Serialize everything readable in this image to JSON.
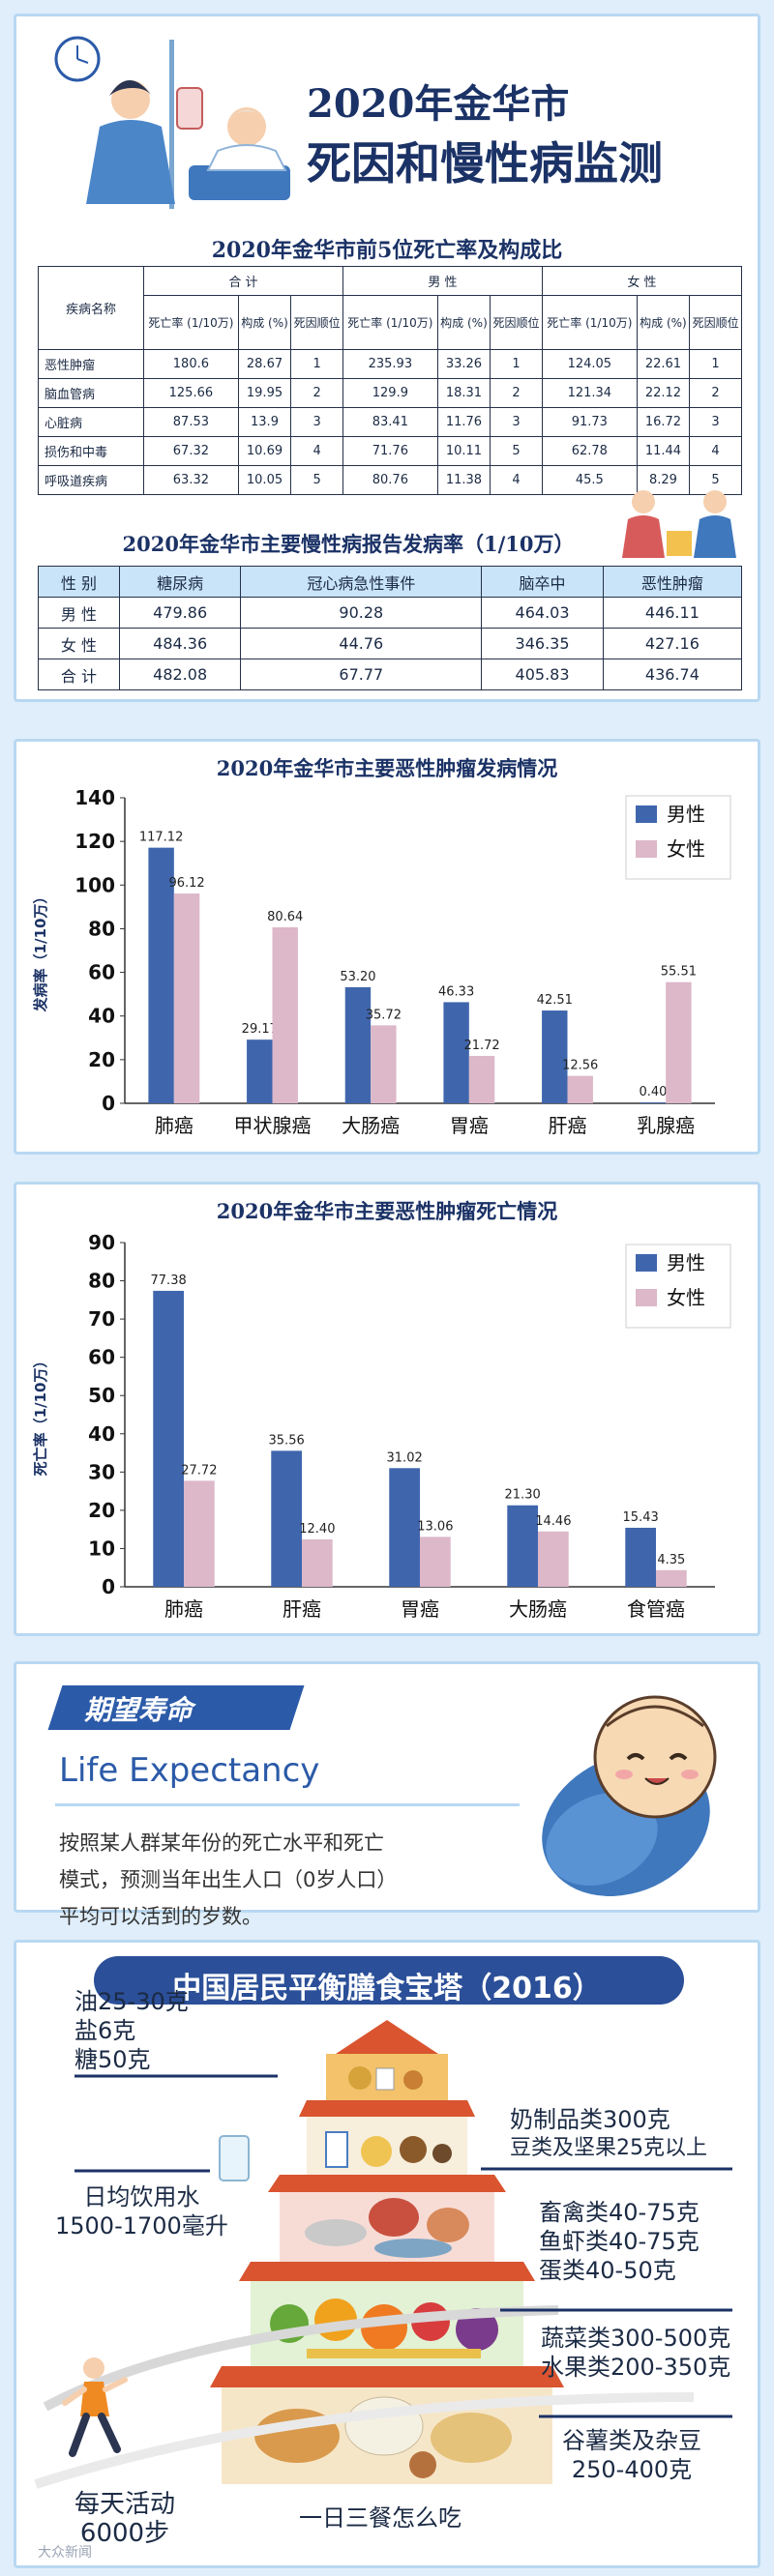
{
  "header": {
    "line1": "2020年金华市",
    "line2": "死因和慢性病监测"
  },
  "table1": {
    "title": "2020年金华市前5位死亡率及构成比",
    "col_disease": "疾病名称",
    "groups": [
      "合 计",
      "男 性",
      "女 性"
    ],
    "sub": [
      "死亡率 (1/10万)",
      "构成 (%)",
      "死因顺位"
    ],
    "rows": [
      {
        "name": "恶性肿瘤",
        "v": [
          "180.6",
          "28.67",
          "1",
          "235.93",
          "33.26",
          "1",
          "124.05",
          "22.61",
          "1"
        ]
      },
      {
        "name": "脑血管病",
        "v": [
          "125.66",
          "19.95",
          "2",
          "129.9",
          "18.31",
          "2",
          "121.34",
          "22.12",
          "2"
        ]
      },
      {
        "name": "心脏病",
        "v": [
          "87.53",
          "13.9",
          "3",
          "83.41",
          "11.76",
          "3",
          "91.73",
          "16.72",
          "3"
        ]
      },
      {
        "name": "损伤和中毒",
        "v": [
          "67.32",
          "10.69",
          "4",
          "71.76",
          "10.11",
          "5",
          "62.78",
          "11.44",
          "4"
        ]
      },
      {
        "name": "呼吸道疾病",
        "v": [
          "63.32",
          "10.05",
          "5",
          "80.76",
          "11.38",
          "4",
          "45.5",
          "8.29",
          "5"
        ]
      }
    ]
  },
  "table2": {
    "title": "2020年金华市主要慢性病报告发病率（1/10万）",
    "headers": [
      "性 别",
      "糖尿病",
      "冠心病急性事件",
      "脑卒中",
      "恶性肿瘤"
    ],
    "rows": [
      [
        "男 性",
        "479.86",
        "90.28",
        "464.03",
        "446.11"
      ],
      [
        "女 性",
        "484.36",
        "44.76",
        "346.35",
        "427.16"
      ],
      [
        "合 计",
        "482.08",
        "67.77",
        "405.83",
        "436.74"
      ]
    ]
  },
  "chart_data": [
    {
      "type": "bar",
      "title": "2020年金华市主要恶性肿瘤发病情况",
      "ylabel": "发病率（1/10万）",
      "categories": [
        "肺癌",
        "甲状腺癌",
        "大肠癌",
        "胃癌",
        "肝癌",
        "乳腺癌"
      ],
      "series": [
        {
          "name": "男性",
          "color": "#3f66ad",
          "values": [
            117.12,
            29.17,
            53.2,
            46.33,
            42.51,
            0.4
          ],
          "labels": [
            "117.12",
            "29.17",
            "53.20",
            "46.33",
            "42.51",
            "0.40"
          ]
        },
        {
          "name": "女性",
          "color": "#dcb8c9",
          "values": [
            96.12,
            80.64,
            35.72,
            21.72,
            12.56,
            55.51
          ],
          "labels": [
            "96.12",
            "80.64",
            "35.72",
            "21.72",
            "12.56",
            "55.51"
          ]
        }
      ],
      "ylim": [
        0,
        140
      ],
      "yticks": [
        0,
        20,
        40,
        60,
        80,
        100,
        120,
        140
      ],
      "legend": "top-right",
      "grid": false
    },
    {
      "type": "bar",
      "title": "2020年金华市主要恶性肿瘤死亡情况",
      "ylabel": "死亡率（1/10万）",
      "categories": [
        "肺癌",
        "肝癌",
        "胃癌",
        "大肠癌",
        "食管癌"
      ],
      "series": [
        {
          "name": "男性",
          "color": "#3f66ad",
          "values": [
            77.38,
            35.56,
            31.02,
            21.3,
            15.43
          ],
          "labels": [
            "77.38",
            "35.56",
            "31.02",
            "21.30",
            "15.43"
          ]
        },
        {
          "name": "女性",
          "color": "#dcb8c9",
          "values": [
            27.72,
            12.4,
            13.06,
            14.46,
            4.35
          ],
          "labels": [
            "27.72",
            "12.40",
            "13.06",
            "14.46",
            "4.35"
          ]
        }
      ],
      "ylim": [
        0,
        90
      ],
      "yticks": [
        0,
        10,
        20,
        30,
        40,
        50,
        60,
        70,
        80,
        90
      ],
      "legend": "top-right",
      "grid": false
    }
  ],
  "life_expectancy": {
    "title": "期望寿命",
    "english": "Life Expectancy",
    "desc_lines": [
      "按照某人群某年份的死亡水平和死亡",
      "模式，预测当年出生人口（0岁人口）",
      "平均可以活到的岁数。"
    ]
  },
  "pagoda": {
    "title": "中国居民平衡膳食宝塔（2016）",
    "oil": [
      "油25-30克",
      "盐6克",
      "糖50克"
    ],
    "water": [
      "日均饮用水",
      "1500-1700毫升"
    ],
    "dairy": [
      "奶制品类300克",
      "豆类及坚果25克以上"
    ],
    "meat": [
      "畜禽类40-75克",
      "鱼虾类40-75克",
      "蛋类40-50克"
    ],
    "veg": [
      "蔬菜类300-500克",
      "水果类200-350克"
    ],
    "grain": [
      "谷薯类及杂豆",
      "250-400克"
    ],
    "activity": [
      "每天活动",
      "6000步"
    ],
    "meals": "一日三餐怎么吃",
    "watermark": "大众新闻"
  },
  "colors": {
    "male": "#3f66ad",
    "female": "#dcb8c9",
    "navy": "#1b3266",
    "accent": "#2b5aa8"
  }
}
